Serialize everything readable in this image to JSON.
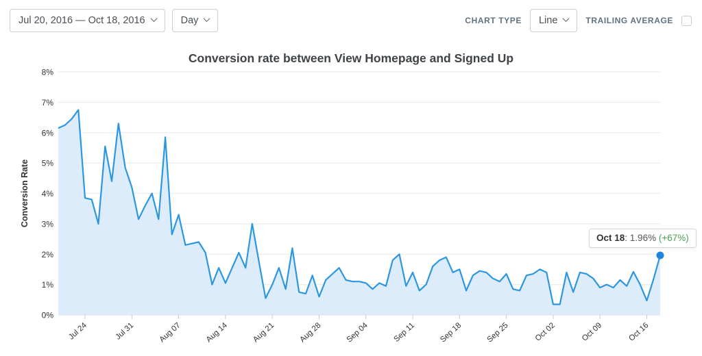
{
  "toolbar": {
    "date_range": "Jul 20, 2016 — Oct 18, 2016",
    "granularity": "Day",
    "chart_type_label": "CHART TYPE",
    "chart_type": "Line",
    "trailing_average_label": "TRAILING AVERAGE",
    "trailing_average_checked": false
  },
  "chart_data": {
    "type": "area",
    "title": "Conversion rate between View Homepage and Signed Up",
    "ylabel": "Conversion Rate",
    "unit": "%",
    "ylim": [
      0,
      8
    ],
    "y_tick_labels": [
      "0%",
      "1%",
      "2%",
      "3%",
      "4%",
      "5%",
      "6%",
      "7%",
      "8%"
    ],
    "x_tick_labels": [
      "Jul 24",
      "Jul 31",
      "Aug 07",
      "Aug 14",
      "Aug 21",
      "Aug 28",
      "Sep 04",
      "Sep 11",
      "Sep 18",
      "Sep 25",
      "Oct 02",
      "Oct 09",
      "Oct 16"
    ],
    "x_tick_indices": [
      4,
      11,
      18,
      25,
      32,
      39,
      46,
      53,
      60,
      67,
      74,
      81,
      88
    ],
    "x_range": [
      "Jul 20, 2016",
      "Oct 18, 2016"
    ],
    "grid": true,
    "legend_position": "none",
    "line_color": "#2d96e1",
    "fill_color": "#ddecfa",
    "dot_color": "#1e87dd",
    "grid_color": "#ececec",
    "values": [
      6.15,
      6.25,
      6.45,
      6.75,
      3.85,
      3.8,
      3.0,
      5.55,
      4.4,
      6.3,
      4.85,
      4.2,
      3.15,
      3.6,
      4.0,
      3.15,
      5.85,
      2.65,
      3.3,
      2.3,
      2.35,
      2.4,
      2.05,
      1.0,
      1.55,
      1.05,
      1.55,
      2.05,
      1.55,
      3.0,
      1.75,
      0.55,
      1.0,
      1.55,
      0.85,
      2.2,
      0.75,
      0.7,
      1.3,
      0.6,
      1.15,
      1.35,
      1.55,
      1.15,
      1.1,
      1.1,
      1.05,
      0.85,
      1.05,
      0.95,
      1.8,
      2.0,
      0.95,
      1.4,
      0.8,
      1.0,
      1.6,
      1.8,
      1.9,
      1.4,
      1.5,
      0.8,
      1.3,
      1.45,
      1.4,
      1.2,
      1.1,
      1.35,
      0.85,
      0.8,
      1.3,
      1.35,
      1.5,
      1.4,
      0.35,
      0.35,
      1.4,
      0.75,
      1.4,
      1.35,
      1.2,
      0.9,
      1.0,
      0.9,
      1.15,
      0.95,
      1.42,
      1.0,
      0.47,
      1.17,
      1.96
    ]
  },
  "tooltip": {
    "date": "Oct 18",
    "separator": ": ",
    "value": "1.96% ",
    "change": "(+67%)"
  }
}
